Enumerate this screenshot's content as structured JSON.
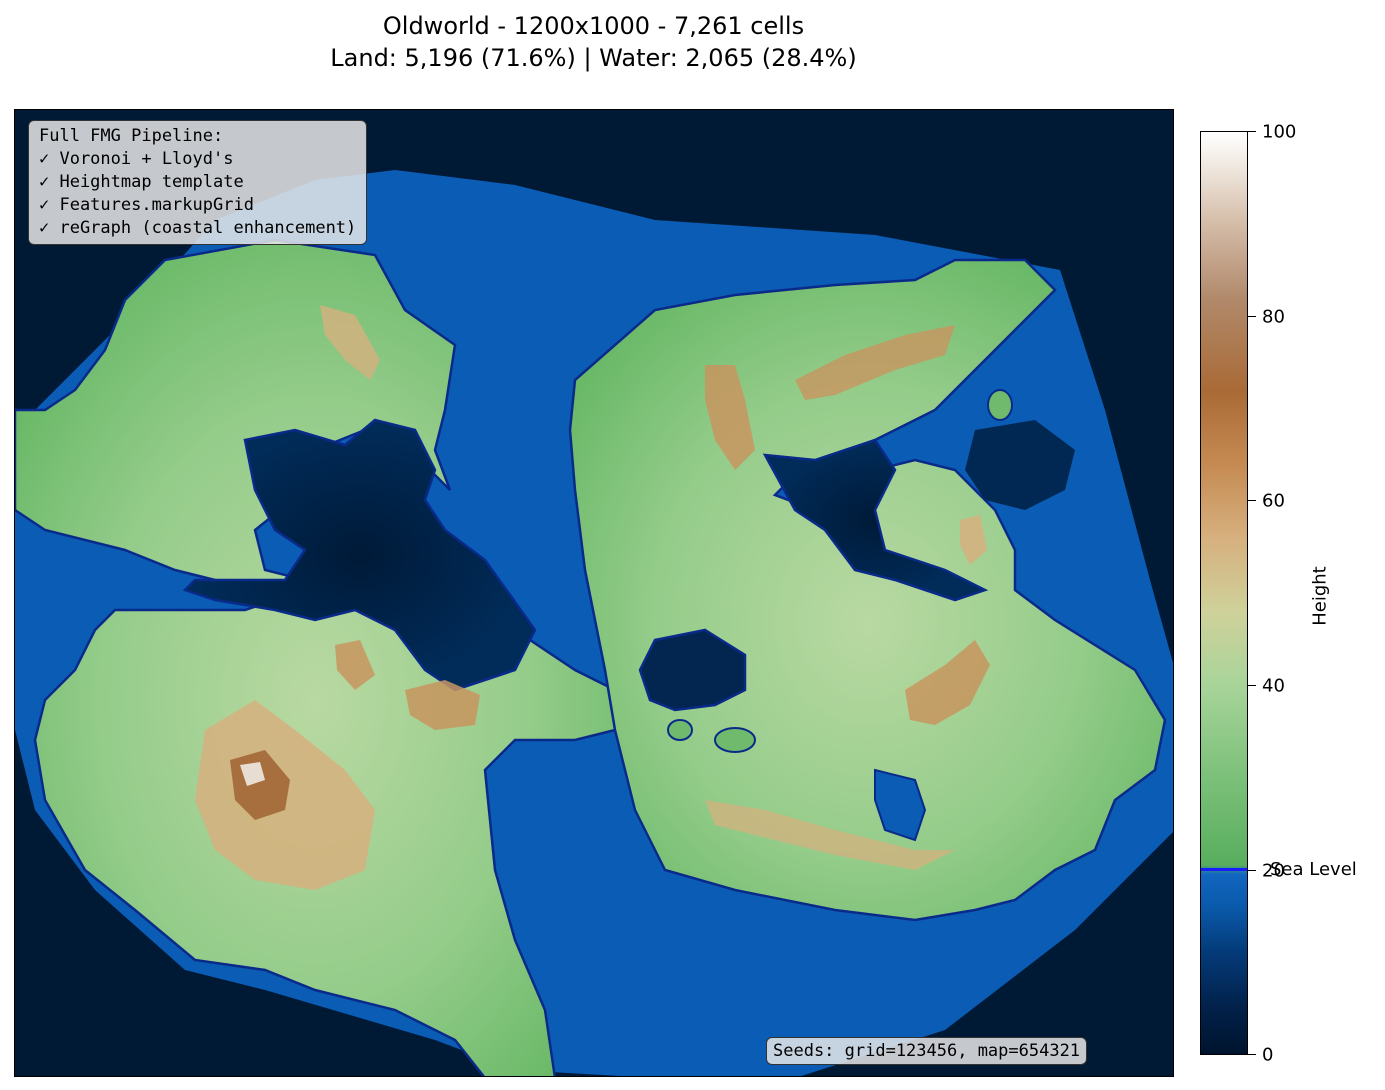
{
  "title": {
    "line1": "Oldworld - 1200x1000 - 7,261 cells",
    "line2": "Land: 5,196 (71.6%) | Water: 2,065 (28.4%)"
  },
  "pipeline_box": {
    "heading": "Full FMG Pipeline:",
    "steps": [
      "✓ Voronoi + Lloyd's",
      "✓ Heightmap template",
      "✓ Features.markupGrid",
      "✓ reGraph (coastal enhancement)"
    ]
  },
  "seeds_box": {
    "text": "Seeds: grid=123456, map=654321"
  },
  "colorbar": {
    "label": "Height",
    "ticks": [
      "0",
      "20",
      "40",
      "60",
      "80",
      "100"
    ],
    "sea_level_label": "Sea Level",
    "sea_level_value": 20,
    "range": [
      0,
      100
    ]
  },
  "colors": {
    "deep_ocean": "#001a36",
    "shallow_water": "#0a5cb5",
    "coastline": "#0a2a8a",
    "lowland": "#6fba6c",
    "midland": "#b3d69f",
    "highland": "#c8955f",
    "peak": "#e8ddd2"
  }
}
